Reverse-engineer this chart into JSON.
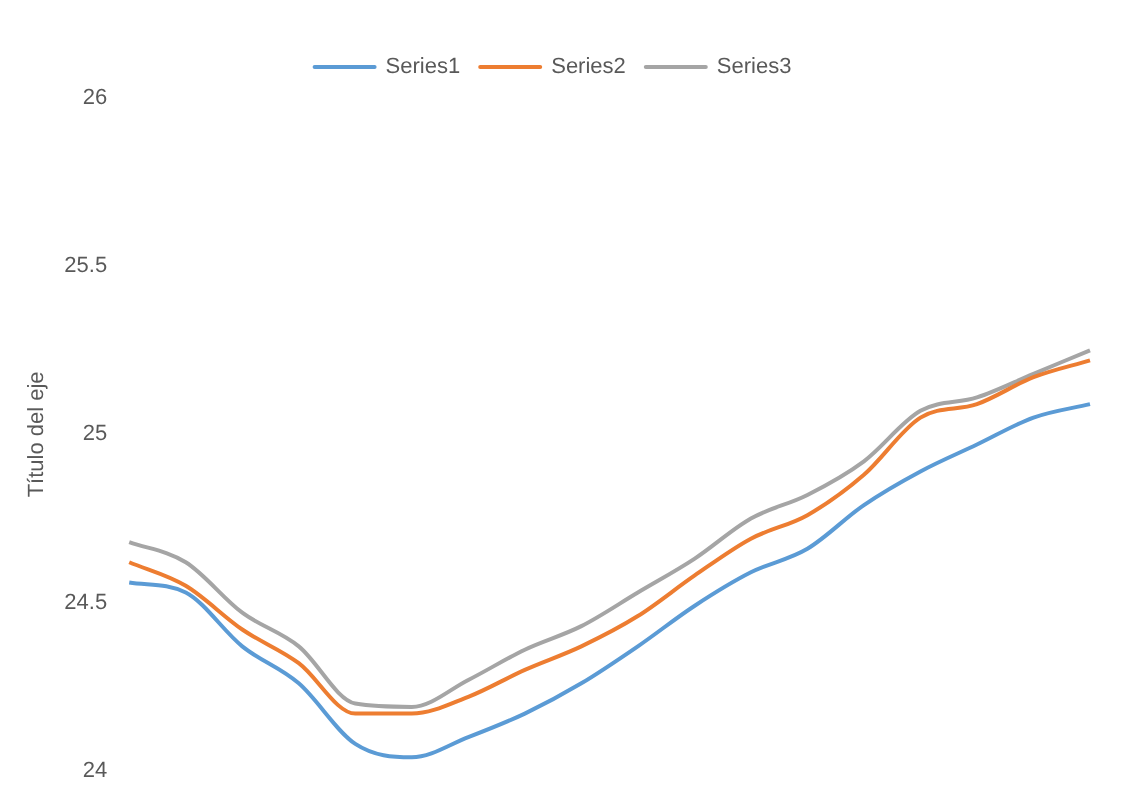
{
  "chart_data": {
    "type": "line",
    "ylabel": "Título del eje",
    "categories": [
      null,
      null,
      null,
      null,
      null,
      null,
      null,
      null,
      null,
      null,
      null,
      null,
      null,
      null,
      null,
      null,
      null,
      null
    ],
    "series": [
      {
        "name": "Series1",
        "color": "#5b9bd5",
        "values": [
          24.56,
          24.53,
          24.37,
          24.26,
          24.08,
          24.04,
          24.1,
          24.17,
          24.26,
          24.37,
          24.49,
          24.59,
          24.66,
          24.79,
          24.89,
          24.97,
          25.05,
          25.09
        ]
      },
      {
        "name": "Series2",
        "color": "#ed7d31",
        "values": [
          24.62,
          24.55,
          24.42,
          24.32,
          24.17,
          24.17,
          24.22,
          24.3,
          24.37,
          24.46,
          24.58,
          24.69,
          24.76,
          24.88,
          25.05,
          25.09,
          25.17,
          25.22
        ]
      },
      {
        "name": "Series3",
        "color": "#a5a5a5",
        "values": [
          24.68,
          24.62,
          24.47,
          24.37,
          24.2,
          24.19,
          24.27,
          24.36,
          24.43,
          24.53,
          24.63,
          24.75,
          24.82,
          24.92,
          25.07,
          25.11,
          25.18,
          25.25
        ]
      }
    ],
    "ylim": [
      24,
      26
    ],
    "yticks": [
      24,
      24.5,
      25,
      25.5,
      26
    ],
    "tick_labels": "y",
    "grid": false,
    "legend": "top",
    "marker": "none",
    "line_style": "solid"
  }
}
